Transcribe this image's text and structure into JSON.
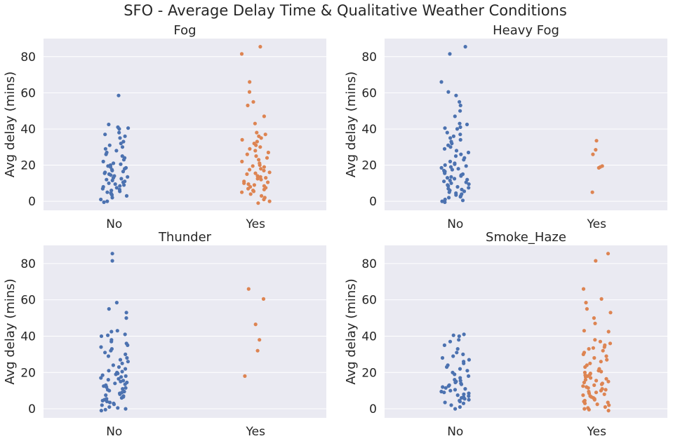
{
  "figure": {
    "suptitle": "SFO - Average Delay Time & Qualitative Weather Conditions",
    "colors": {
      "No": "#4c72b0",
      "Yes": "#dd8452",
      "panel_bg": "#eaeaf2",
      "grid": "#ffffff"
    }
  },
  "chart_data": [
    {
      "type": "scatter",
      "style": "strip",
      "title": "Fog",
      "xlabel": "",
      "ylabel": "Avg delay (mins)",
      "categories": [
        "No",
        "Yes"
      ],
      "ylim": [
        -5,
        90
      ],
      "yticks": [
        0,
        20,
        40,
        60,
        80
      ],
      "grid": true,
      "points": {
        "No": [
          58.5,
          42.5,
          41,
          40.5,
          40,
          38,
          37,
          36,
          35,
          33,
          32,
          31,
          30,
          29,
          28,
          27,
          26,
          25,
          24,
          23,
          22,
          21,
          20.5,
          20,
          19.5,
          19,
          18.5,
          18,
          17.5,
          17,
          16.5,
          16,
          15.5,
          15,
          14.5,
          14,
          13.5,
          13,
          12.5,
          12,
          11.5,
          11,
          10.5,
          10,
          9.5,
          9,
          8.5,
          8,
          7.5,
          7,
          6.5,
          6,
          5.5,
          5,
          4.5,
          4,
          3.5,
          3,
          2,
          1,
          0,
          -0.5
        ],
        "Yes": [
          85.5,
          81.5,
          66,
          60.5,
          55,
          53,
          47,
          43,
          38,
          37,
          36,
          35,
          34,
          33,
          32,
          31,
          30,
          29,
          28,
          27,
          26,
          25,
          24,
          23,
          22,
          21,
          20,
          19.5,
          19,
          18,
          17.5,
          17,
          16,
          15.5,
          15,
          14,
          13.5,
          13,
          12.5,
          12,
          11,
          10.5,
          10,
          9.5,
          9,
          8.5,
          8,
          7.5,
          7,
          6.5,
          6,
          5.5,
          5,
          4,
          3,
          2,
          1,
          0,
          -1
        ]
      }
    },
    {
      "type": "scatter",
      "style": "strip",
      "title": "Heavy Fog",
      "xlabel": "",
      "ylabel": "Avg delay (mins)",
      "categories": [
        "No",
        "Yes"
      ],
      "ylim": [
        -5,
        90
      ],
      "yticks": [
        0,
        20,
        40,
        60,
        80
      ],
      "grid": true,
      "points": {
        "No": [
          85.5,
          81.5,
          66,
          60.5,
          58.5,
          55,
          53,
          50,
          47,
          43,
          42.5,
          41,
          40.5,
          40,
          38,
          37,
          36,
          35,
          34,
          33,
          32,
          31,
          30,
          29,
          28,
          27,
          26,
          25,
          24,
          23,
          22,
          21,
          20.5,
          20,
          19.5,
          19,
          18.5,
          18,
          17.5,
          17,
          16.5,
          16,
          15.5,
          15,
          14.5,
          14,
          13.5,
          13,
          12.5,
          12,
          11.5,
          11,
          10.5,
          10,
          9.5,
          9,
          8.5,
          8,
          7.5,
          7,
          6.5,
          6,
          5.5,
          5,
          4.5,
          4,
          3.5,
          3,
          2.5,
          2,
          1,
          0.5,
          0,
          -0.5
        ],
        "Yes": [
          33.5,
          28.5,
          26,
          19.5,
          19,
          18.5,
          5
        ]
      }
    },
    {
      "type": "scatter",
      "style": "strip",
      "title": "Thunder",
      "xlabel": "",
      "ylabel": "Avg delay (mins)",
      "categories": [
        "No",
        "Yes"
      ],
      "ylim": [
        -5,
        90
      ],
      "yticks": [
        0,
        20,
        40,
        60,
        80
      ],
      "grid": true,
      "points": {
        "No": [
          85.5,
          81.5,
          58.5,
          55,
          53,
          50,
          43,
          42.5,
          41,
          40.5,
          40,
          38,
          37,
          36,
          35,
          34,
          33,
          32,
          31,
          30,
          29,
          28,
          27,
          26,
          25,
          24,
          23,
          22,
          21,
          20.5,
          20,
          19.5,
          19,
          18.5,
          18,
          17.5,
          17,
          16.5,
          16,
          15.5,
          15,
          14.5,
          14,
          13.5,
          13,
          12.5,
          12,
          11.5,
          11,
          10.5,
          10,
          9.5,
          9,
          8.5,
          8,
          7.5,
          7,
          6.5,
          6,
          5.5,
          5,
          4.5,
          4,
          3.5,
          3,
          2.5,
          2,
          1,
          0.5,
          0,
          -0.5,
          -1
        ],
        "Yes": [
          66,
          60.5,
          46.5,
          38,
          32,
          18
        ]
      }
    },
    {
      "type": "scatter",
      "style": "strip",
      "title": "Smoke_Haze",
      "xlabel": "",
      "ylabel": "Avg delay (mins)",
      "categories": [
        "No",
        "Yes"
      ],
      "ylim": [
        -5,
        90
      ],
      "yticks": [
        0,
        20,
        40,
        60,
        80
      ],
      "grid": true,
      "points": {
        "No": [
          41,
          40.5,
          40,
          38,
          37,
          35,
          33,
          31,
          30,
          29,
          28,
          27,
          26,
          25,
          24,
          23,
          22,
          21,
          20,
          19,
          18,
          17,
          16,
          15.5,
          15,
          14.5,
          14,
          13.5,
          13,
          12.5,
          12,
          11.5,
          11,
          10.5,
          10,
          9.5,
          9,
          8.5,
          8,
          7.5,
          7,
          6.5,
          6,
          5.5,
          5,
          4.5,
          4,
          3.5,
          3,
          2,
          1,
          0
        ],
        "Yes": [
          85.5,
          81.5,
          66,
          60.5,
          58.5,
          55,
          53,
          50,
          47,
          43,
          42.5,
          38,
          37,
          36,
          35,
          34,
          33.5,
          33,
          32,
          31,
          30,
          29,
          28,
          27,
          26,
          25,
          24,
          23,
          22,
          21,
          20.5,
          20,
          19.5,
          19,
          18.5,
          18,
          17.5,
          17,
          16.5,
          16,
          15.5,
          15,
          14.5,
          14,
          13.5,
          13,
          12.5,
          12,
          11.5,
          11,
          10.5,
          10,
          9.5,
          9,
          8.5,
          8,
          7.5,
          7,
          6.5,
          6,
          5.5,
          5,
          4.5,
          4,
          3.5,
          3,
          2.5,
          2,
          1,
          0.5,
          0,
          -0.5,
          -1
        ]
      }
    }
  ]
}
